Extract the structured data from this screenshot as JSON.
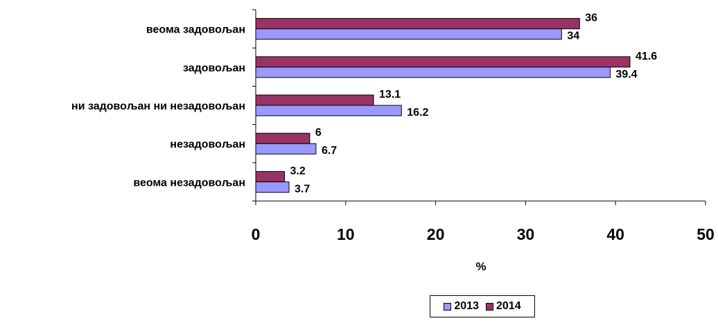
{
  "chart_data": {
    "type": "bar",
    "orientation": "horizontal",
    "categories": [
      "веома задовољан",
      "задовољан",
      "ни задовољан ни незадовољан",
      "незадовољан",
      "веома незадовољан"
    ],
    "series": [
      {
        "name": "2013",
        "values": [
          34,
          39.4,
          16.2,
          6.7,
          3.7
        ],
        "color": "#9999ff"
      },
      {
        "name": "2014",
        "values": [
          36,
          41.6,
          13.1,
          6,
          3.2
        ],
        "color": "#993366"
      }
    ],
    "xlabel": "%",
    "xlim": [
      0,
      50
    ],
    "xticks": [
      "0",
      "10",
      "20",
      "30",
      "40",
      "50"
    ],
    "grid": false,
    "legend_position": "bottom"
  }
}
